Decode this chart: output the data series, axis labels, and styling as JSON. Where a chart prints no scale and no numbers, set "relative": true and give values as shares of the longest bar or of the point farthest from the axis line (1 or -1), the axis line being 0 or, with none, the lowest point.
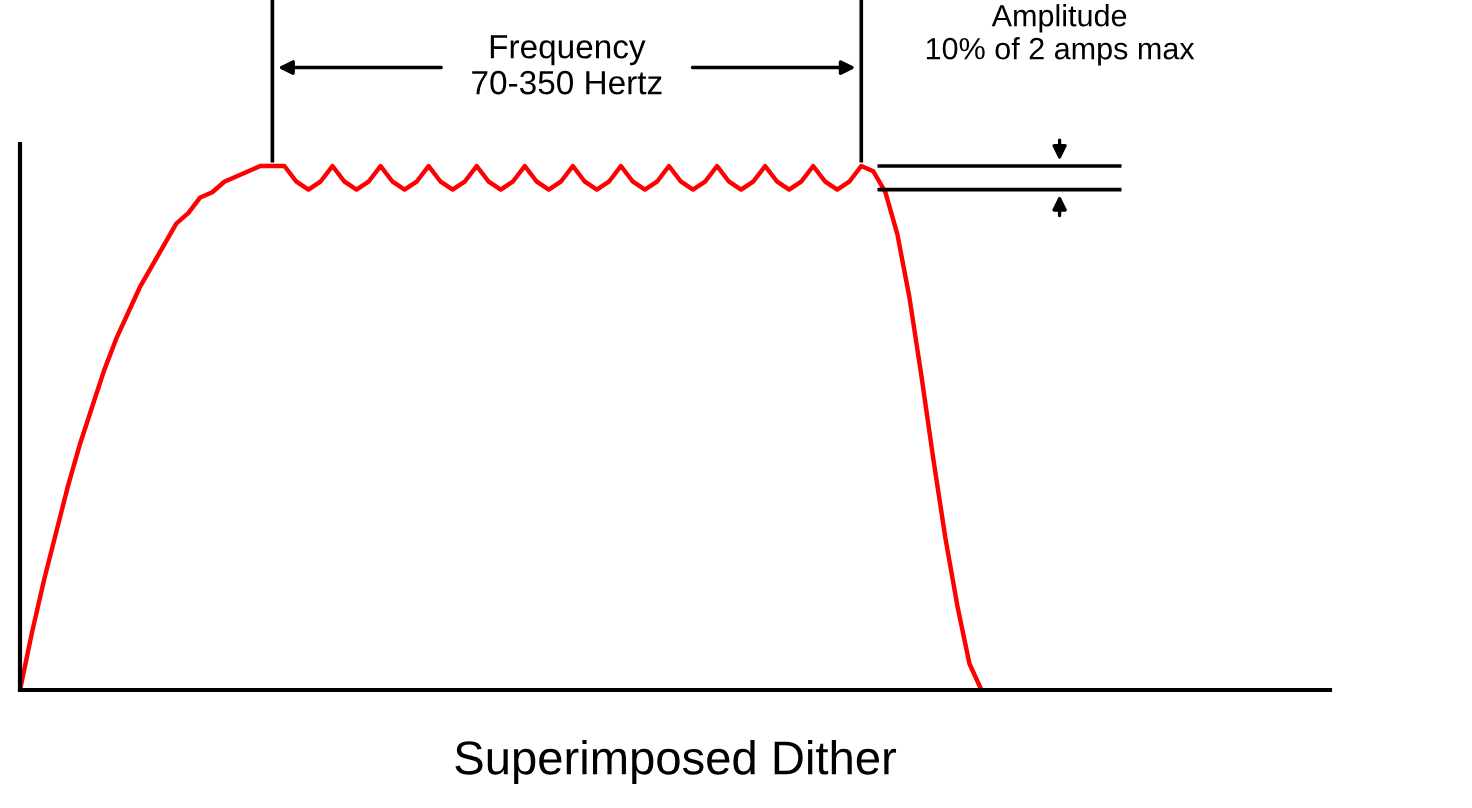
{
  "chart_data": {
    "type": "line",
    "relative": true,
    "xlabel": "Superimposed Dither",
    "categories": [
      null,
      null,
      null,
      null,
      null,
      null,
      null,
      null,
      null,
      null,
      null,
      null,
      null,
      null,
      null,
      null,
      null,
      null,
      null,
      null,
      null,
      null,
      null,
      null,
      null,
      null,
      null,
      null,
      null,
      null,
      null,
      null,
      null,
      null,
      null,
      null,
      null,
      null,
      null,
      null,
      null,
      null,
      null,
      null,
      null,
      null,
      null,
      null,
      null,
      null,
      null,
      null,
      null,
      null,
      null,
      null,
      null,
      null,
      null,
      null,
      null,
      null,
      null,
      null,
      null,
      null,
      null,
      null,
      null,
      null,
      null,
      null,
      null,
      null,
      null,
      null,
      null,
      null,
      null,
      null,
      null,
      null,
      null,
      null,
      null,
      null,
      null,
      null,
      null,
      null,
      null,
      null,
      null,
      null,
      null,
      null,
      null,
      null,
      null,
      null,
      null,
      null,
      null,
      null,
      null,
      null,
      null,
      null,
      null,
      null
    ],
    "series": [
      {
        "color": "#ff0000",
        "values": [
          0,
          0.11,
          0.21,
          0.3,
          0.39,
          0.47,
          0.54,
          0.61,
          0.67,
          0.72,
          0.77,
          0.81,
          0.85,
          0.89,
          0.91,
          0.94,
          0.95,
          0.97,
          0.98,
          0.99,
          1.0,
          1.0,
          1.0,
          0.97,
          0.955,
          0.97,
          1.0,
          0.97,
          0.955,
          0.97,
          1.0,
          0.97,
          0.955,
          0.97,
          1.0,
          0.97,
          0.955,
          0.97,
          1.0,
          0.97,
          0.955,
          0.97,
          1.0,
          0.97,
          0.955,
          0.97,
          1.0,
          0.97,
          0.955,
          0.97,
          1.0,
          0.97,
          0.955,
          0.97,
          1.0,
          0.97,
          0.955,
          0.97,
          1.0,
          0.97,
          0.955,
          0.97,
          1.0,
          0.97,
          0.955,
          0.97,
          1.0,
          0.97,
          0.955,
          0.97,
          1.0,
          0.99,
          0.95,
          0.87,
          0.75,
          0.6,
          0.44,
          0.29,
          0.16,
          0.05,
          0,
          null,
          null,
          null,
          null,
          null,
          null,
          null,
          null,
          null,
          null,
          null,
          null,
          null,
          null,
          null,
          null,
          null,
          null,
          null,
          null,
          null,
          null,
          null,
          null,
          null,
          null,
          null,
          null,
          null
        ]
      }
    ],
    "annotations": [
      "Frequency\n70-350 Hertz",
      "Amplitude\n10% of 2 amps max"
    ],
    "ref_lines": [
      {
        "axis": "y",
        "value": 1.0,
        "color": "#000000"
      },
      {
        "axis": "y",
        "value": 0.955,
        "color": "#000000"
      }
    ],
    "legend": false,
    "marker": "none",
    "line_style": "solid"
  }
}
